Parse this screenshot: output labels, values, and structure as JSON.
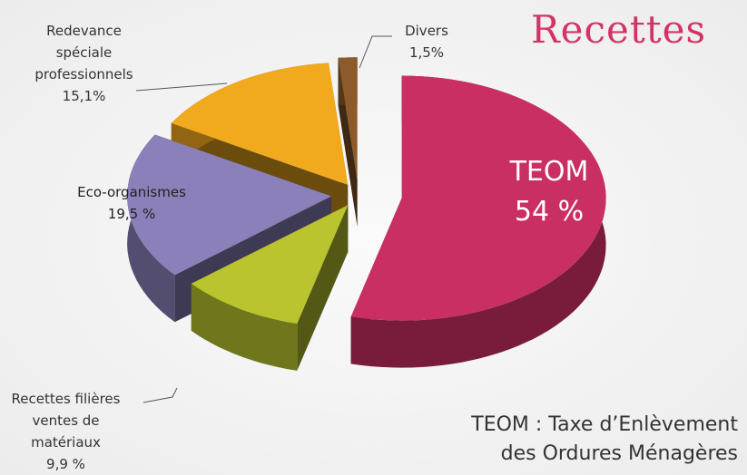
{
  "chart_data": {
    "type": "pie3d",
    "title": "Recettes",
    "categories": [
      "TEOM",
      "Recettes filières ventes de matériaux",
      "Eco-organismes",
      "Redevance spéciale professionnels",
      "Divers"
    ],
    "values": [
      54,
      9.9,
      19.5,
      15.1,
      1.5
    ],
    "value_labels": [
      "54 %",
      "9,9 %",
      "19,5 %",
      "15,1%",
      "1,5%"
    ],
    "colors": [
      "#c92f62",
      "#b9c42e",
      "#8b80b9",
      "#f1a91d",
      "#8d5b2b"
    ],
    "footnote": [
      "TEOM : Taxe d’Enlèvement",
      "des Ordures Ménagères"
    ]
  }
}
